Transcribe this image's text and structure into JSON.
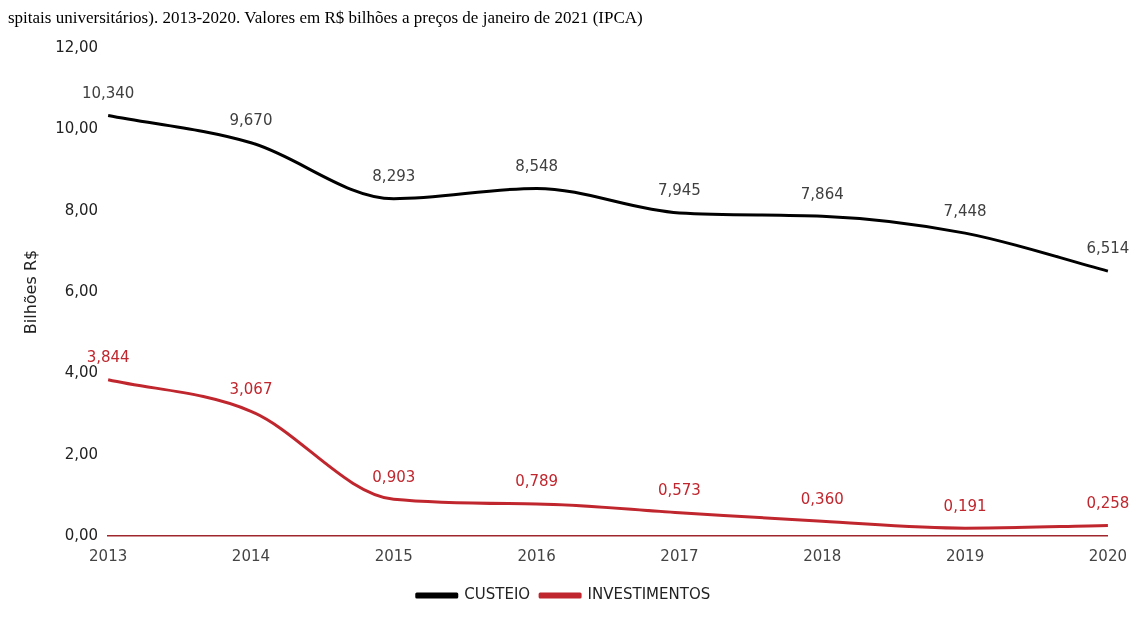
{
  "chart_data": {
    "type": "line",
    "title": "spitais universitários). 2013-2020. Valores em R$ bilhões a preços de janeiro de 2021 (IPCA)",
    "ylabel": "Bilhões R$",
    "categories": [
      "2013",
      "2014",
      "2015",
      "2016",
      "2017",
      "2018",
      "2019",
      "2020"
    ],
    "series": [
      {
        "name": "CUSTEIO",
        "color": "#000000",
        "values": [
          10.34,
          9.67,
          8.293,
          8.548,
          7.945,
          7.864,
          7.448,
          6.514
        ],
        "value_labels": [
          "10,340",
          "9,670",
          "8,293",
          "8,548",
          "7,945",
          "7,864",
          "7,448",
          "6,514"
        ]
      },
      {
        "name": "INVESTIMENTOS",
        "color": "#c0262d",
        "values": [
          3.844,
          3.067,
          0.903,
          0.789,
          0.573,
          0.36,
          0.191,
          0.258
        ],
        "value_labels": [
          "3,844",
          "3,067",
          "0,903",
          "0,789",
          "0,573",
          "0,360",
          "0,191",
          "0,258"
        ]
      }
    ],
    "ylim": [
      0,
      12
    ],
    "yticks": [
      {
        "value": 0,
        "label": "0,00"
      },
      {
        "value": 2,
        "label": "2,00"
      },
      {
        "value": 4,
        "label": "4,00"
      },
      {
        "value": 6,
        "label": "6,00"
      },
      {
        "value": 8,
        "label": "8,00"
      },
      {
        "value": 10,
        "label": "10,00"
      },
      {
        "value": 12,
        "label": "12,00"
      }
    ],
    "grid": false,
    "legend": "bottom",
    "marker": "none",
    "line_style": "solid"
  }
}
